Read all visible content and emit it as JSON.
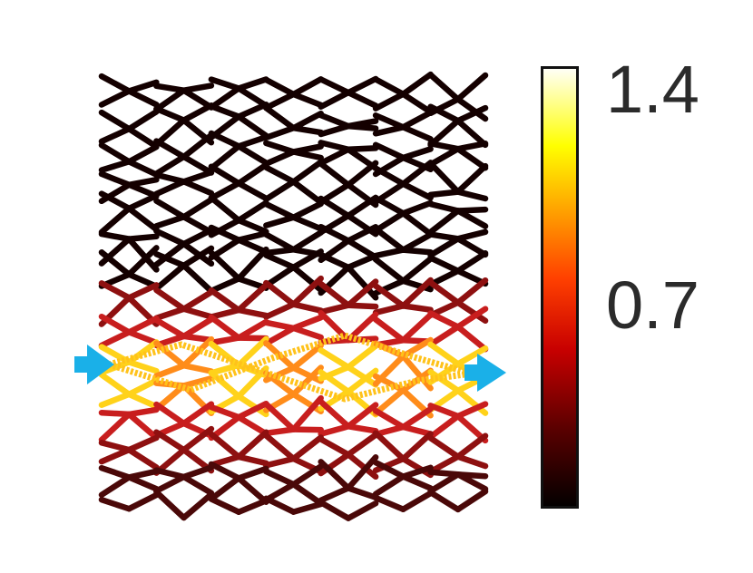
{
  "colorbar": {
    "tick_max": "1.4",
    "tick_mid": "0.7",
    "min_value": 0,
    "max_value": 1.4,
    "colormap": "hot",
    "colormap_stops": [
      "#000000",
      "#5a0000",
      "#c80000",
      "#ff4000",
      "#ff9900",
      "#ffff00",
      "#ffffff"
    ]
  },
  "network": {
    "rows": 14,
    "columns": 7,
    "edge_color_low": "#111111",
    "edge_color_mid": "#8b0000",
    "edge_color_high": "#ffcc00"
  },
  "markers": {
    "input_arrow_color": "#1ab0e8",
    "output_arrow_color": "#1ab0e8",
    "input_label": "input-arrow",
    "output_label": "output-arrow"
  }
}
